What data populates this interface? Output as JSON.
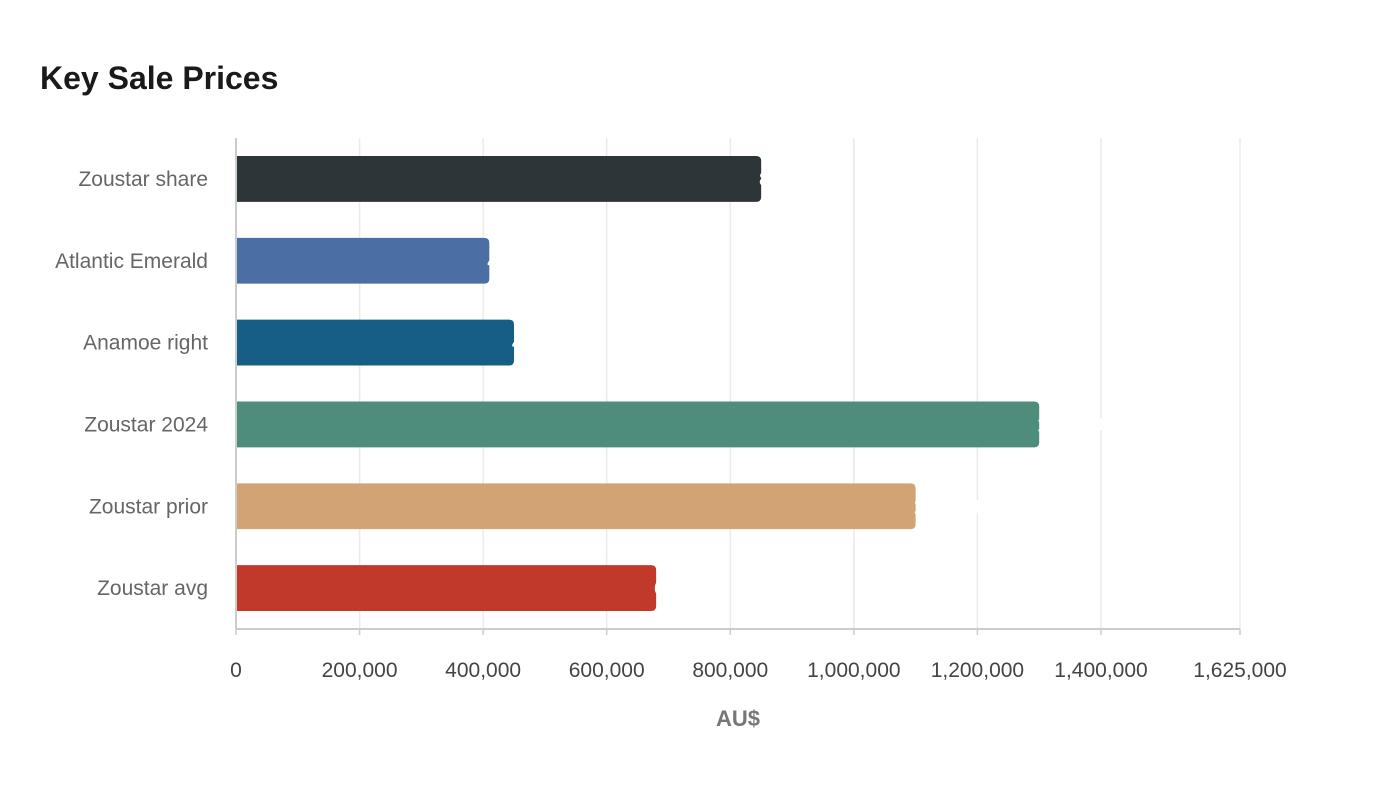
{
  "chart_data": {
    "type": "bar",
    "orientation": "horizontal",
    "title": "Key Sale Prices",
    "xlabel": "AU$",
    "ylabel": "",
    "categories": [
      "Zoustar share",
      "Atlantic Emerald",
      "Anamoe right",
      "Zoustar 2024",
      "Zoustar prior",
      "Zoustar avg"
    ],
    "values": [
      850000,
      410000,
      450000,
      1300000,
      1100000,
      680000
    ],
    "colors": [
      "#2e3538",
      "#4b6fa5",
      "#175e87",
      "#4e8c7c",
      "#d3a473",
      "#c0392b"
    ],
    "xlim": [
      0,
      1625000
    ],
    "ticks": [
      0,
      200000,
      400000,
      600000,
      800000,
      1000000,
      1200000,
      1400000,
      1625000
    ],
    "tick_labels": [
      "0",
      "200,000",
      "400,000",
      "600,000",
      "800,000",
      "1,000,000",
      "1,200,000",
      "1,400,000",
      "1,625,000"
    ],
    "grid": true,
    "legend": "none"
  }
}
